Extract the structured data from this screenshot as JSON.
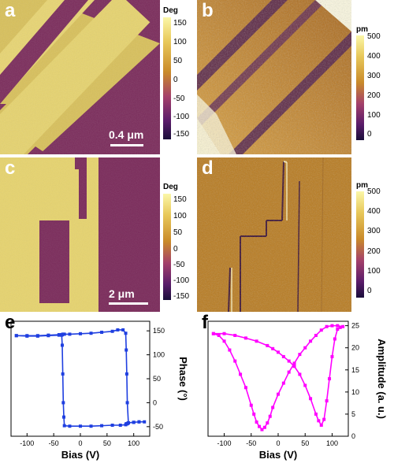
{
  "panels": {
    "a": {
      "label": "a"
    },
    "b": {
      "label": "b"
    },
    "c": {
      "label": "c"
    },
    "d": {
      "label": "d"
    },
    "e": {
      "label": "e"
    },
    "f": {
      "label": "f"
    }
  },
  "colorbars": {
    "phase_top": {
      "unit": "Deg",
      "ticks": [
        "150",
        "100",
        "50",
        "0",
        "-50",
        "-100",
        "-150"
      ]
    },
    "height_top": {
      "unit": "pm",
      "ticks": [
        "500",
        "400",
        "300",
        "200",
        "100",
        "0"
      ]
    },
    "phase_bottom": {
      "unit": "Deg",
      "ticks": [
        "150",
        "100",
        "50",
        "0",
        "-50",
        "-100",
        "-150"
      ]
    },
    "height_bottom": {
      "unit": "pm",
      "ticks": [
        "500",
        "400",
        "300",
        "200",
        "100",
        "0"
      ]
    }
  },
  "scalebars": {
    "a": "0.4 μm",
    "c": "2 μm"
  },
  "colors": {
    "phase_bright": "#e8d572",
    "phase_dark": "#7a2a5a",
    "height_mid": "#b87a1e",
    "phase_loop": "#1f3fe0",
    "amp_loop": "#ff00ff"
  },
  "chart_data": [
    {
      "type": "line",
      "panel": "e",
      "xlabel": "Bias (V)",
      "ylabel": "Phase (°)",
      "xlim": [
        -130,
        130
      ],
      "ylim": [
        -70,
        170
      ],
      "xticks": [
        "-100",
        "-50",
        "0",
        "50",
        "100"
      ],
      "yticks": [
        "150",
        "100",
        "50",
        "0",
        "-50"
      ],
      "x": [
        -120,
        -100,
        -80,
        -60,
        -40,
        -35,
        -34,
        -33,
        -32,
        -31,
        -30,
        -20,
        0,
        20,
        40,
        60,
        75,
        85,
        86,
        87,
        88,
        89,
        90,
        100,
        110,
        120,
        110,
        100,
        90,
        88,
        87,
        86,
        85,
        80,
        70,
        60,
        40,
        20,
        0,
        -20,
        -30,
        -32,
        -33,
        -34,
        -35,
        -40,
        -60,
        -80,
        -100,
        -120
      ],
      "y": [
        140,
        139,
        139,
        140,
        141,
        141,
        120,
        60,
        0,
        -30,
        -48,
        -49,
        -49,
        -49,
        -48,
        -47,
        -47,
        -46,
        -44,
        -44,
        -44,
        -43,
        -42,
        -41,
        -40,
        -40,
        -40,
        -41,
        -42,
        0,
        60,
        110,
        145,
        152,
        152,
        149,
        147,
        145,
        144,
        143,
        143,
        143,
        143,
        142,
        142,
        142,
        141,
        140,
        140,
        140
      ]
    },
    {
      "type": "line",
      "panel": "f",
      "xlabel": "Bias (V)",
      "ylabel": "Amplitude (a. u.)",
      "xlim": [
        -130,
        130
      ],
      "ylim": [
        0,
        26
      ],
      "xticks": [
        "-100",
        "-50",
        "0",
        "50",
        "100"
      ],
      "yticks": [
        "25",
        "20",
        "15",
        "10",
        "5",
        "0"
      ],
      "x": [
        -120,
        -110,
        -100,
        -90,
        -80,
        -70,
        -60,
        -50,
        -45,
        -40,
        -35,
        -30,
        -25,
        -20,
        -15,
        -10,
        0,
        10,
        20,
        30,
        40,
        50,
        60,
        70,
        80,
        90,
        100,
        110,
        120,
        115,
        110,
        105,
        100,
        95,
        90,
        85,
        80,
        75,
        70,
        60,
        50,
        40,
        30,
        20,
        10,
        0,
        -10,
        -20,
        -40,
        -60,
        -80,
        -100,
        -120
      ],
      "y": [
        23.2,
        22.8,
        21.5,
        19.5,
        17,
        14,
        11,
        7,
        5,
        3.2,
        2.2,
        1.5,
        2,
        3,
        4.5,
        6.5,
        9.5,
        12,
        14.5,
        16.5,
        18.5,
        20,
        21.5,
        22.8,
        24,
        24.8,
        25,
        25,
        24.8,
        24.6,
        24.2,
        22,
        18,
        13,
        8,
        3.8,
        2.5,
        3.5,
        5,
        8.5,
        11.5,
        14,
        15.8,
        17,
        18,
        19,
        19.8,
        20.5,
        21.5,
        22.2,
        22.8,
        23.2,
        23.2
      ]
    }
  ]
}
